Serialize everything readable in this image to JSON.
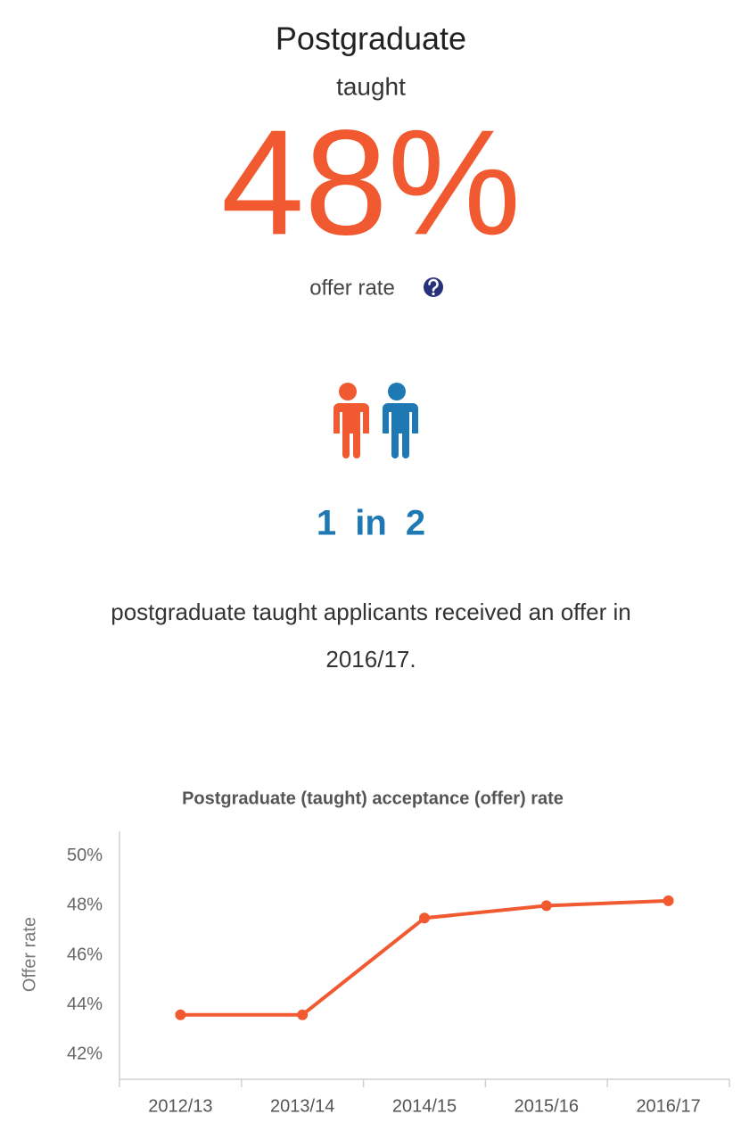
{
  "header": {
    "title": "Postgraduate",
    "subtitle": "taught"
  },
  "stat": {
    "value_text": "48%",
    "label": "offer rate"
  },
  "ratio": {
    "text": "1 in 2"
  },
  "description": {
    "lines": [
      "postgraduate taught applicants received an offer in",
      "2016/17."
    ]
  },
  "chart_data": {
    "type": "line",
    "title": "Postgraduate (taught) acceptance (offer) rate",
    "y_label": "Offer rate",
    "categories": [
      "2012/13",
      "2013/14",
      "2014/15",
      "2015/16",
      "2016/17"
    ],
    "values": [
      43.6,
      43.6,
      47.5,
      48.0,
      48.2
    ],
    "color": "#f15a31",
    "ylim": [
      41,
      51
    ],
    "yticks": [
      {
        "value": 42,
        "label": "42%"
      },
      {
        "value": 44,
        "label": "44%"
      },
      {
        "value": 46,
        "label": "46%"
      },
      {
        "value": 48,
        "label": "48%"
      },
      {
        "value": 50,
        "label": "50%"
      }
    ],
    "grid": false
  }
}
